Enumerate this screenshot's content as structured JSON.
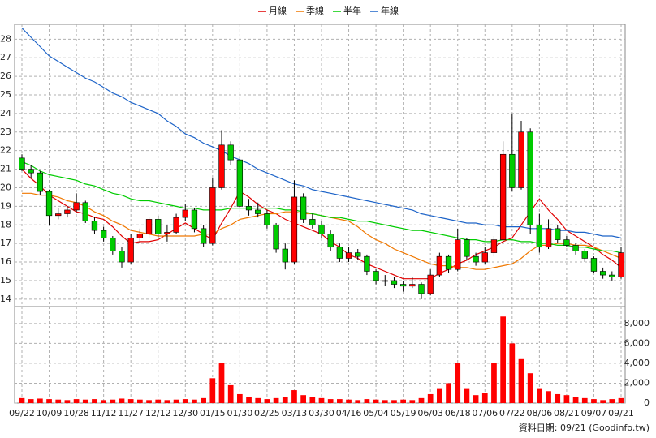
{
  "chart_data": [
    {
      "type": "candlestick",
      "categories": [
        "09/22",
        null,
        null,
        "10/09",
        null,
        null,
        "10/28",
        null,
        null,
        "11/12",
        null,
        null,
        "11/27",
        null,
        null,
        "12/12",
        null,
        null,
        "12/30",
        null,
        null,
        "01/15",
        null,
        null,
        "01/30",
        null,
        null,
        "02/25",
        null,
        null,
        "03/13",
        null,
        null,
        "03/30",
        null,
        null,
        "04/16",
        null,
        null,
        "05/04",
        null,
        null,
        "05/19",
        null,
        null,
        "06/03",
        null,
        null,
        "06/18",
        null,
        null,
        "07/06",
        null,
        null,
        "07/22",
        null,
        null,
        "08/06",
        null,
        null,
        "08/21",
        null,
        null,
        "09/07",
        null,
        null,
        "09/21"
      ],
      "open": [
        21.6,
        21.0,
        20.8,
        19.8,
        18.5,
        18.6,
        18.8,
        19.2,
        18.2,
        17.7,
        17.3,
        16.6,
        16.0,
        17.3,
        17.5,
        18.3,
        17.5,
        17.6,
        18.4,
        18.8,
        17.8,
        17.0,
        20.0,
        22.3,
        21.5,
        19.0,
        18.8,
        18.6,
        18.0,
        16.7,
        16.0,
        19.5,
        18.3,
        18.0,
        17.5,
        16.8,
        16.2,
        16.5,
        16.3,
        15.5,
        15.0,
        15.0,
        14.8,
        14.7,
        14.8,
        14.3,
        15.3,
        16.3,
        15.6,
        17.2,
        16.3,
        16.0,
        16.5,
        17.2,
        21.8,
        20.0,
        23.0,
        18.0,
        16.8,
        17.8,
        17.2,
        16.9,
        16.6,
        16.2,
        15.5,
        15.3,
        15.2
      ],
      "high": [
        21.8,
        21.2,
        20.9,
        19.9,
        18.9,
        19.0,
        19.7,
        19.3,
        18.4,
        17.9,
        17.4,
        16.8,
        17.5,
        17.8,
        18.4,
        18.5,
        18.0,
        18.6,
        19.1,
        18.9,
        18.0,
        20.5,
        23.1,
        22.5,
        21.7,
        19.4,
        19.2,
        18.8,
        18.1,
        17.0,
        20.4,
        19.7,
        18.6,
        18.2,
        17.7,
        17.0,
        16.8,
        16.7,
        16.4,
        15.6,
        15.3,
        15.2,
        15.0,
        15.2,
        14.9,
        15.6,
        16.5,
        16.4,
        17.8,
        17.3,
        16.5,
        16.8,
        17.4,
        22.5,
        24.0,
        23.6,
        23.2,
        18.6,
        18.3,
        18.0,
        17.4,
        17.0,
        16.7,
        16.3,
        15.7,
        15.5,
        16.8
      ],
      "low": [
        20.9,
        20.5,
        19.6,
        18.0,
        18.3,
        18.4,
        18.7,
        18.1,
        17.5,
        17.1,
        16.4,
        15.7,
        15.9,
        17.0,
        17.3,
        17.3,
        17.1,
        17.5,
        18.2,
        17.6,
        16.8,
        16.9,
        19.9,
        21.2,
        18.9,
        18.5,
        18.4,
        17.8,
        16.5,
        15.6,
        15.9,
        18.1,
        17.8,
        17.3,
        16.6,
        16.0,
        16.0,
        16.1,
        15.3,
        14.8,
        14.7,
        14.6,
        14.4,
        14.6,
        14.0,
        14.2,
        15.2,
        15.4,
        15.5,
        16.1,
        15.8,
        15.9,
        16.3,
        17.1,
        19.8,
        19.9,
        17.5,
        16.5,
        16.7,
        17.0,
        16.8,
        16.4,
        16.0,
        15.4,
        15.1,
        15.0,
        15.1
      ],
      "close": [
        21.0,
        20.8,
        19.8,
        18.5,
        18.6,
        18.8,
        19.2,
        18.2,
        17.7,
        17.3,
        16.6,
        16.0,
        17.3,
        17.5,
        18.3,
        17.5,
        17.6,
        18.4,
        18.8,
        17.8,
        17.0,
        20.0,
        22.3,
        21.5,
        19.0,
        18.8,
        18.6,
        18.0,
        16.7,
        16.0,
        19.5,
        18.3,
        18.0,
        17.5,
        16.8,
        16.2,
        16.5,
        16.3,
        15.5,
        15.0,
        15.0,
        14.8,
        14.7,
        14.8,
        14.3,
        15.3,
        16.3,
        15.6,
        17.2,
        16.3,
        16.0,
        16.5,
        17.2,
        21.8,
        20.0,
        23.0,
        18.0,
        16.8,
        17.8,
        17.2,
        16.9,
        16.6,
        16.2,
        15.5,
        15.3,
        15.2,
        16.5
      ],
      "up_color": "#ff0000",
      "down_color": "#00cc00",
      "series": [
        {
          "name": "月線",
          "color": "#e00000",
          "values": [
            21.0,
            20.5,
            20.1,
            19.6,
            19.3,
            19.0,
            18.7,
            18.6,
            18.4,
            18.3,
            17.9,
            17.4,
            17.0,
            17.1,
            17.1,
            17.2,
            17.5,
            17.8,
            18.1,
            17.8,
            17.5,
            17.2,
            18.1,
            18.9,
            19.8,
            19.5,
            19.1,
            18.8,
            18.6,
            18.3,
            18.1,
            17.9,
            17.7,
            17.5,
            17.1,
            16.8,
            16.4,
            16.2,
            15.9,
            15.7,
            15.5,
            15.3,
            15.1,
            15.1,
            15.1,
            15.1,
            15.4,
            15.6,
            15.9,
            16.1,
            16.4,
            16.6,
            16.8,
            17.1,
            17.3,
            18.0,
            18.7,
            19.4,
            18.8,
            18.3,
            17.7,
            17.4,
            17.1,
            16.8,
            16.4,
            16.1,
            15.7
          ]
        },
        {
          "name": "季線",
          "color": "#f07800",
          "values": [
            19.7,
            19.7,
            19.6,
            19.6,
            19.5,
            19.3,
            19.2,
            19.0,
            18.7,
            18.5,
            18.2,
            18.0,
            17.7,
            17.6,
            17.5,
            17.4,
            17.4,
            17.4,
            17.4,
            17.4,
            17.5,
            17.5,
            17.8,
            18.0,
            18.3,
            18.4,
            18.5,
            18.6,
            18.6,
            18.7,
            18.7,
            18.6,
            18.6,
            18.5,
            18.4,
            18.3,
            18.2,
            17.9,
            17.5,
            17.2,
            17.0,
            16.7,
            16.5,
            16.3,
            16.1,
            15.9,
            15.8,
            15.8,
            15.7,
            15.7,
            15.6,
            15.6,
            15.7,
            15.8,
            15.9,
            16.2,
            16.6,
            16.9,
            16.9,
            17.0,
            17.0,
            16.9,
            16.9,
            16.8,
            16.6,
            16.4,
            16.2
          ]
        },
        {
          "name": "半年",
          "color": "#00cc00",
          "values": [
            21.4,
            21.2,
            20.9,
            20.7,
            20.6,
            20.5,
            20.4,
            20.2,
            20.1,
            19.9,
            19.7,
            19.6,
            19.4,
            19.3,
            19.3,
            19.2,
            19.1,
            19.0,
            18.9,
            18.9,
            18.8,
            18.8,
            18.8,
            18.9,
            18.9,
            18.9,
            18.9,
            18.9,
            18.9,
            18.8,
            18.8,
            18.7,
            18.6,
            18.5,
            18.4,
            18.4,
            18.3,
            18.2,
            18.2,
            18.1,
            18.0,
            17.9,
            17.8,
            17.7,
            17.7,
            17.6,
            17.5,
            17.4,
            17.3,
            17.2,
            17.2,
            17.1,
            17.1,
            17.2,
            17.2,
            17.1,
            17.1,
            17.0,
            17.0,
            16.9,
            16.9,
            16.8,
            16.8,
            16.7,
            16.6,
            16.6,
            16.5
          ]
        },
        {
          "name": "年線",
          "color": "#1e64c8",
          "values": [
            28.6,
            28.1,
            27.6,
            27.1,
            26.8,
            26.5,
            26.2,
            25.9,
            25.7,
            25.4,
            25.1,
            24.9,
            24.6,
            24.4,
            24.2,
            24.0,
            23.6,
            23.3,
            22.9,
            22.7,
            22.4,
            22.2,
            22.0,
            21.7,
            21.5,
            21.3,
            21.0,
            20.8,
            20.6,
            20.4,
            20.2,
            20.1,
            19.9,
            19.8,
            19.7,
            19.6,
            19.5,
            19.4,
            19.3,
            19.2,
            19.1,
            19.0,
            18.9,
            18.8,
            18.6,
            18.5,
            18.4,
            18.3,
            18.2,
            18.1,
            18.1,
            18.0,
            18.0,
            17.9,
            17.9,
            17.9,
            17.8,
            17.8,
            17.8,
            17.7,
            17.7,
            17.6,
            17.6,
            17.5,
            17.4,
            17.4,
            17.3
          ]
        }
      ],
      "ylim": [
        13.6,
        28.8
      ],
      "yticks": [
        14,
        15,
        16,
        17,
        18,
        19,
        20,
        21,
        22,
        23,
        24,
        25,
        26,
        27,
        28
      ],
      "grid": true,
      "legend": "top",
      "note": "資料日期: 09/21 (Goodinfo.tw)"
    },
    {
      "type": "bar",
      "values": [
        500,
        400,
        450,
        400,
        350,
        300,
        400,
        350,
        400,
        300,
        350,
        450,
        400,
        350,
        300,
        350,
        300,
        350,
        400,
        350,
        500,
        2500,
        4000,
        1800,
        900,
        600,
        500,
        400,
        500,
        600,
        1300,
        800,
        600,
        500,
        400,
        400,
        350,
        300,
        400,
        350,
        300,
        300,
        350,
        300,
        500,
        900,
        1500,
        2000,
        4000,
        1500,
        800,
        1000,
        4000,
        8700,
        6000,
        4500,
        3000,
        1500,
        1200,
        900,
        800,
        600,
        500,
        400,
        300,
        400,
        500
      ],
      "color": "#ff0000",
      "ylim": [
        0,
        9700
      ],
      "yticks": [
        0,
        {
          "value": 2000,
          "label": "2,000"
        },
        {
          "value": 4000,
          "label": "4,000"
        },
        {
          "value": 6000,
          "label": "6,000"
        },
        {
          "value": 8000,
          "label": "8,000"
        }
      ],
      "grid": true,
      "yaxis_side": "right"
    }
  ]
}
